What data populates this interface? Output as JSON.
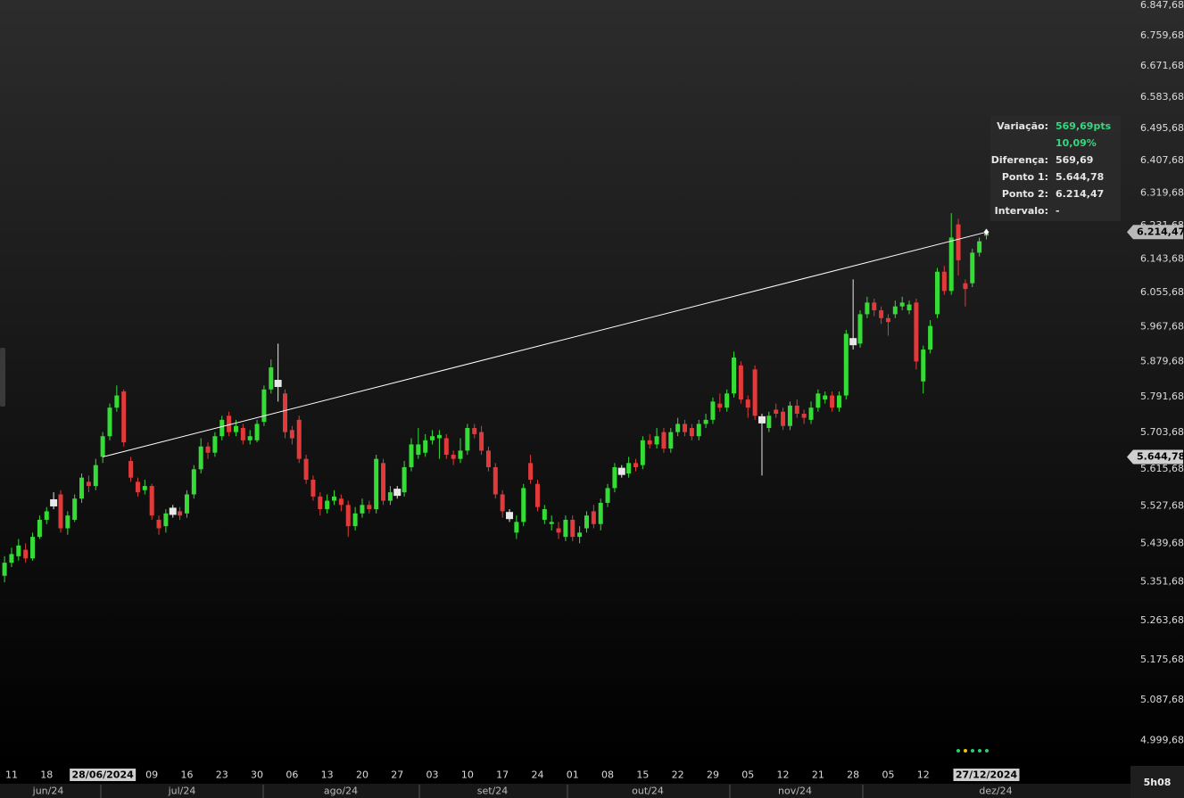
{
  "chart_data": {
    "type": "candlestick",
    "log_scale": true,
    "ylim": [
      4946,
      6863
    ],
    "yticks": [
      {
        "value": 6847.68,
        "label": "6.847,68"
      },
      {
        "value": 6759.68,
        "label": "6.759,68"
      },
      {
        "value": 6671.68,
        "label": "6.671,68"
      },
      {
        "value": 6583.68,
        "label": "6.583,68"
      },
      {
        "value": 6495.68,
        "label": "6.495,68"
      },
      {
        "value": 6407.68,
        "label": "6.407,68"
      },
      {
        "value": 6319.68,
        "label": "6.319,68"
      },
      {
        "value": 6231.68,
        "label": "6.231,68"
      },
      {
        "value": 6143.68,
        "label": "6.143,68"
      },
      {
        "value": 6055.68,
        "label": "6.055,68"
      },
      {
        "value": 5967.68,
        "label": "5.967,68"
      },
      {
        "value": 5879.68,
        "label": "5.879,68"
      },
      {
        "value": 5791.68,
        "label": "5.791,68"
      },
      {
        "value": 5703.68,
        "label": "5.703,68"
      },
      {
        "value": 5615.68,
        "label": "5.615,68"
      },
      {
        "value": 5527.68,
        "label": "5.527,68"
      },
      {
        "value": 5439.68,
        "label": "5.439,68"
      },
      {
        "value": 5351.68,
        "label": "5.351,68"
      },
      {
        "value": 5263.68,
        "label": "5.263,68"
      },
      {
        "value": 5175.68,
        "label": "5.175,68"
      },
      {
        "value": 5087.68,
        "label": "5.087,68"
      },
      {
        "value": 4999.68,
        "label": "4.999,68"
      }
    ],
    "up_color": "#36dc36",
    "down_color": "#e23a3a",
    "doji_color": "#e8e8e8",
    "categories": [
      null,
      "11",
      null,
      null,
      null,
      null,
      "18",
      null,
      null,
      null,
      null,
      null,
      null,
      null,
      "28/06/2024",
      null,
      null,
      null,
      null,
      null,
      null,
      "09",
      null,
      null,
      null,
      null,
      "16",
      null,
      null,
      null,
      null,
      "23",
      null,
      null,
      null,
      null,
      "30",
      null,
      null,
      null,
      null,
      "06",
      null,
      null,
      null,
      null,
      "13",
      null,
      null,
      null,
      null,
      "20",
      null,
      null,
      null,
      null,
      "27",
      null,
      null,
      null,
      null,
      "03",
      null,
      null,
      null,
      null,
      "10",
      null,
      null,
      null,
      null,
      "17",
      null,
      null,
      null,
      null,
      "24",
      null,
      null,
      null,
      null,
      "01",
      null,
      null,
      null,
      null,
      "08",
      null,
      null,
      null,
      null,
      "15",
      null,
      null,
      null,
      null,
      "22",
      null,
      null,
      null,
      null,
      "29",
      null,
      null,
      null,
      null,
      "05",
      null,
      null,
      null,
      null,
      "12",
      null,
      null,
      null,
      null,
      "21",
      null,
      null,
      null,
      null,
      "28",
      null,
      null,
      null,
      null,
      "05",
      null,
      null,
      null,
      null,
      "12",
      null,
      null,
      null,
      null,
      null,
      null,
      null,
      null,
      "27/12/2024"
    ],
    "open": [
      5365,
      5395,
      5410,
      5425,
      5405,
      5455,
      5495,
      5535,
      5555,
      5475,
      5495,
      5545,
      5585,
      5575,
      5645,
      5695,
      5765,
      5805,
      5635,
      5585,
      5565,
      5575,
      5495,
      5480,
      5515,
      5515,
      5510,
      5555,
      5615,
      5670,
      5655,
      5695,
      5745,
      5705,
      5715,
      5685,
      5685,
      5730,
      5810,
      5825,
      5800,
      5710,
      5735,
      5640,
      5590,
      5550,
      5520,
      5540,
      5545,
      5530,
      5480,
      5510,
      5530,
      5520,
      5630,
      5540,
      5560,
      5560,
      5620,
      5650,
      5655,
      5685,
      5690,
      5690,
      5650,
      5640,
      5660,
      5715,
      5705,
      5660,
      5620,
      5555,
      5505,
      5465,
      5490,
      5630,
      5580,
      5495,
      5485,
      5475,
      5455,
      5495,
      5455,
      5475,
      5515,
      5485,
      5535,
      5570,
      5610,
      5605,
      5630,
      5625,
      5685,
      5675,
      5705,
      5665,
      5705,
      5725,
      5715,
      5695,
      5725,
      5735,
      5775,
      5765,
      5800,
      5870,
      5785,
      5860,
      5735,
      5715,
      5760,
      5755,
      5720,
      5770,
      5750,
      5735,
      5765,
      5785,
      5795,
      5765,
      5795,
      5930,
      5925,
      6000,
      6030,
      6010,
      5990,
      6000,
      6020,
      6010,
      6030,
      5830,
      5910,
      6000,
      6110,
      6060,
      6235,
      6080,
      6080,
      6160,
      6205
    ],
    "close": [
      5395,
      5415,
      5435,
      5405,
      5455,
      5495,
      5515,
      5535,
      5475,
      5505,
      5545,
      5595,
      5575,
      5625,
      5695,
      5765,
      5795,
      5680,
      5595,
      5560,
      5575,
      5505,
      5475,
      5510,
      5515,
      5505,
      5555,
      5615,
      5670,
      5655,
      5695,
      5735,
      5705,
      5720,
      5685,
      5695,
      5725,
      5810,
      5865,
      5825,
      5705,
      5690,
      5640,
      5590,
      5550,
      5520,
      5540,
      5550,
      5530,
      5480,
      5510,
      5530,
      5520,
      5640,
      5540,
      5560,
      5560,
      5620,
      5675,
      5675,
      5685,
      5695,
      5698,
      5650,
      5640,
      5660,
      5715,
      5700,
      5660,
      5620,
      5555,
      5515,
      5505,
      5490,
      5570,
      5590,
      5525,
      5520,
      5490,
      5465,
      5495,
      5455,
      5465,
      5505,
      5485,
      5535,
      5570,
      5620,
      5610,
      5630,
      5620,
      5685,
      5675,
      5695,
      5665,
      5705,
      5725,
      5705,
      5695,
      5725,
      5735,
      5780,
      5765,
      5800,
      5890,
      5785,
      5765,
      5745,
      5735,
      5745,
      5750,
      5720,
      5770,
      5750,
      5740,
      5765,
      5800,
      5795,
      5765,
      5795,
      5950,
      5930,
      6000,
      6030,
      6010,
      5990,
      5980,
      6020,
      6030,
      6025,
      5880,
      5910,
      5970,
      6110,
      6060,
      6200,
      6140,
      6065,
      6160,
      6190,
      6214.47
    ],
    "high": [
      5410,
      5430,
      5450,
      5440,
      5465,
      5505,
      5525,
      5560,
      5565,
      5515,
      5555,
      5605,
      5600,
      5640,
      5705,
      5775,
      5820,
      5810,
      5645,
      5595,
      5590,
      5580,
      5505,
      5520,
      5530,
      5525,
      5565,
      5625,
      5690,
      5680,
      5705,
      5745,
      5755,
      5735,
      5725,
      5710,
      5735,
      5820,
      5885,
      5925,
      5810,
      5720,
      5745,
      5650,
      5600,
      5560,
      5555,
      5565,
      5555,
      5540,
      5525,
      5545,
      5540,
      5650,
      5640,
      5575,
      5575,
      5635,
      5690,
      5715,
      5700,
      5710,
      5710,
      5700,
      5660,
      5690,
      5725,
      5725,
      5720,
      5670,
      5630,
      5565,
      5520,
      5505,
      5580,
      5650,
      5590,
      5530,
      5505,
      5490,
      5505,
      5505,
      5480,
      5515,
      5530,
      5545,
      5580,
      5630,
      5625,
      5645,
      5640,
      5695,
      5700,
      5715,
      5715,
      5715,
      5740,
      5735,
      5725,
      5735,
      5750,
      5790,
      5800,
      5810,
      5905,
      5880,
      5795,
      5870,
      5750,
      5755,
      5775,
      5765,
      5780,
      5785,
      5760,
      5780,
      5810,
      5805,
      5805,
      5805,
      5960,
      6090,
      6010,
      6045,
      6040,
      6020,
      6000,
      6035,
      6045,
      6035,
      6040,
      5920,
      5985,
      6120,
      6125,
      6265,
      6250,
      6090,
      6170,
      6200,
      6220
    ],
    "low": [
      5350,
      5385,
      5400,
      5395,
      5400,
      5450,
      5485,
      5520,
      5465,
      5460,
      5490,
      5535,
      5560,
      5565,
      5630,
      5685,
      5755,
      5670,
      5585,
      5550,
      5555,
      5495,
      5460,
      5465,
      5500,
      5495,
      5500,
      5545,
      5605,
      5640,
      5645,
      5685,
      5695,
      5695,
      5675,
      5675,
      5680,
      5720,
      5800,
      5780,
      5690,
      5675,
      5630,
      5580,
      5540,
      5505,
      5510,
      5530,
      5515,
      5455,
      5470,
      5500,
      5510,
      5510,
      5530,
      5530,
      5545,
      5550,
      5610,
      5640,
      5645,
      5675,
      5640,
      5640,
      5625,
      5630,
      5650,
      5690,
      5650,
      5610,
      5545,
      5500,
      5490,
      5450,
      5480,
      5580,
      5515,
      5485,
      5470,
      5450,
      5445,
      5445,
      5440,
      5465,
      5475,
      5470,
      5525,
      5560,
      5595,
      5595,
      5610,
      5615,
      5665,
      5665,
      5655,
      5655,
      5695,
      5695,
      5685,
      5685,
      5715,
      5725,
      5755,
      5755,
      5790,
      5775,
      5740,
      5735,
      5600,
      5705,
      5740,
      5710,
      5710,
      5740,
      5725,
      5725,
      5755,
      5775,
      5755,
      5755,
      5785,
      5910,
      5915,
      5990,
      5995,
      5975,
      5945,
      5990,
      6010,
      6000,
      5860,
      5800,
      5900,
      5990,
      6050,
      6050,
      6100,
      6020,
      6070,
      6150,
      6195
    ],
    "trendline": {
      "x": [
        "28/06/2024",
        "27/12/2024"
      ],
      "y": [
        5644.78,
        6214.47
      ],
      "color": "#ffffff"
    },
    "price_markers": [
      {
        "value": 6214.47,
        "label": "6.214,47"
      },
      {
        "value": 5644.78,
        "label": "5.644,78"
      }
    ],
    "months": [
      "jun/24",
      "jul/24",
      "ago/24",
      "set/24",
      "out/24",
      "nov/24",
      "dez/24"
    ],
    "info": [
      {
        "label": "Variação:",
        "value": "569,69pts",
        "highlight": true
      },
      {
        "value": "10,09%",
        "highlight": true
      },
      {
        "label": "Diferença:",
        "value": "569,69"
      },
      {
        "label": "Ponto 1:",
        "value": "5.644,78"
      },
      {
        "label": "Ponto 2:",
        "value": "6.214,47"
      },
      {
        "label": "Intervalo:",
        "value": "-"
      }
    ],
    "highlight_color": "#37d67f",
    "timeframe": "5h08"
  }
}
